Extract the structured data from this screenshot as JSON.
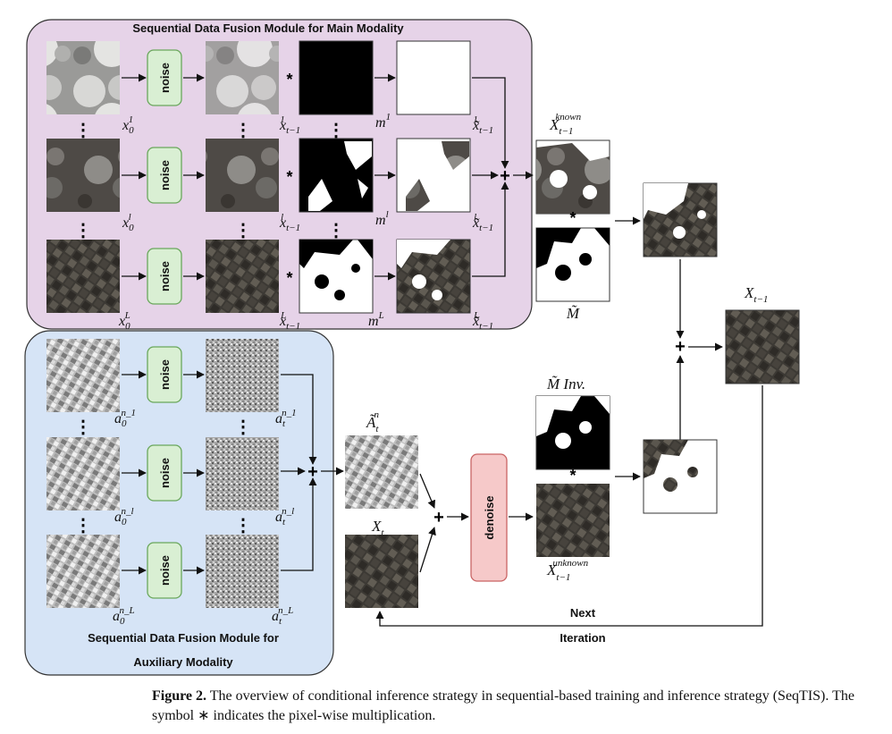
{
  "modules": {
    "main_title": "Sequential Data Fusion Module for Main Modality",
    "aux_title_line1": "Sequential Data Fusion Module for",
    "aux_title_line2": "Auxiliary Modality"
  },
  "boxes": {
    "noise": "noise",
    "denoise": "denoise"
  },
  "symbols": {
    "star": "*",
    "plus": "+",
    "vdots": "⋮"
  },
  "labels": {
    "x01": "x",
    "x01_sub": "0",
    "x01_sup": "1",
    "x0l": "x",
    "x0l_sub": "0",
    "x0l_sup": "l",
    "x0L": "x",
    "x0L_sub": "0",
    "x0L_sup": "L",
    "xt1": "x",
    "xt1_sub": "t−1",
    "xt1_sup": "1",
    "xtl": "x",
    "xtl_sub": "t−1",
    "xtl_sup": "l",
    "xtL": "x",
    "xtL_sub": "t−1",
    "xtL_sup": "L",
    "m1": "m",
    "m1_sup": "1",
    "ml": "m",
    "ml_sup": "l",
    "mL": "m",
    "mL_sup": "L",
    "xtil1": "x̃",
    "xtil1_sub": "t−1",
    "xtil1_sup": "1",
    "xtill": "x̃",
    "xtill_sub": "t−1",
    "xtill_sup": "l",
    "xtilL": "x̃",
    "xtilL_sub": "t−1",
    "xtilL_sup": "L",
    "xknown": "X",
    "xknown_sub": "t−1",
    "xknown_sup": "known",
    "mtilde": "M̃",
    "mtilde_inv": "M̃ Inv.",
    "xunknown": "X",
    "xunknown_sub": "t−1",
    "xunknown_sup": "unknown",
    "xt_minus1": "X",
    "xt_minus1_sub": "t−1",
    "a0n1": "a",
    "a0n1_sub": "0",
    "a0n1_sup": "n_1",
    "a0nl": "a",
    "a0nl_sub": "0",
    "a0nl_sup": "n_l",
    "a0nL": "a",
    "a0nL_sub": "0",
    "a0nL_sup": "n_L",
    "atn1": "a",
    "atn1_sub": "t",
    "atn1_sup": "n_1",
    "atnl": "a",
    "atnl_sub": "t",
    "atnl_sup": "n_l",
    "atnL": "a",
    "atnL_sub": "t",
    "atnL_sup": "n_L",
    "atilde": "Ã",
    "atilde_sub": "t",
    "atilde_sup": "n",
    "xt": "X",
    "xt_sub": "t",
    "next": "Next",
    "iteration": "Iteration"
  },
  "caption": {
    "label": "Figure 2.",
    "text": "The overview of conditional inference strategy in sequential-based training and inference strategy (SeqTIS). The symbol ∗ indicates the pixel-wise multiplication."
  },
  "colors": {
    "main_module_fill": "#e6d3e8",
    "aux_module_fill": "#d6e4f6",
    "noise_fill": "#d9efd3",
    "noise_stroke": "#6aa75c",
    "denoise_fill": "#f6c9c9",
    "denoise_stroke": "#c96464"
  }
}
